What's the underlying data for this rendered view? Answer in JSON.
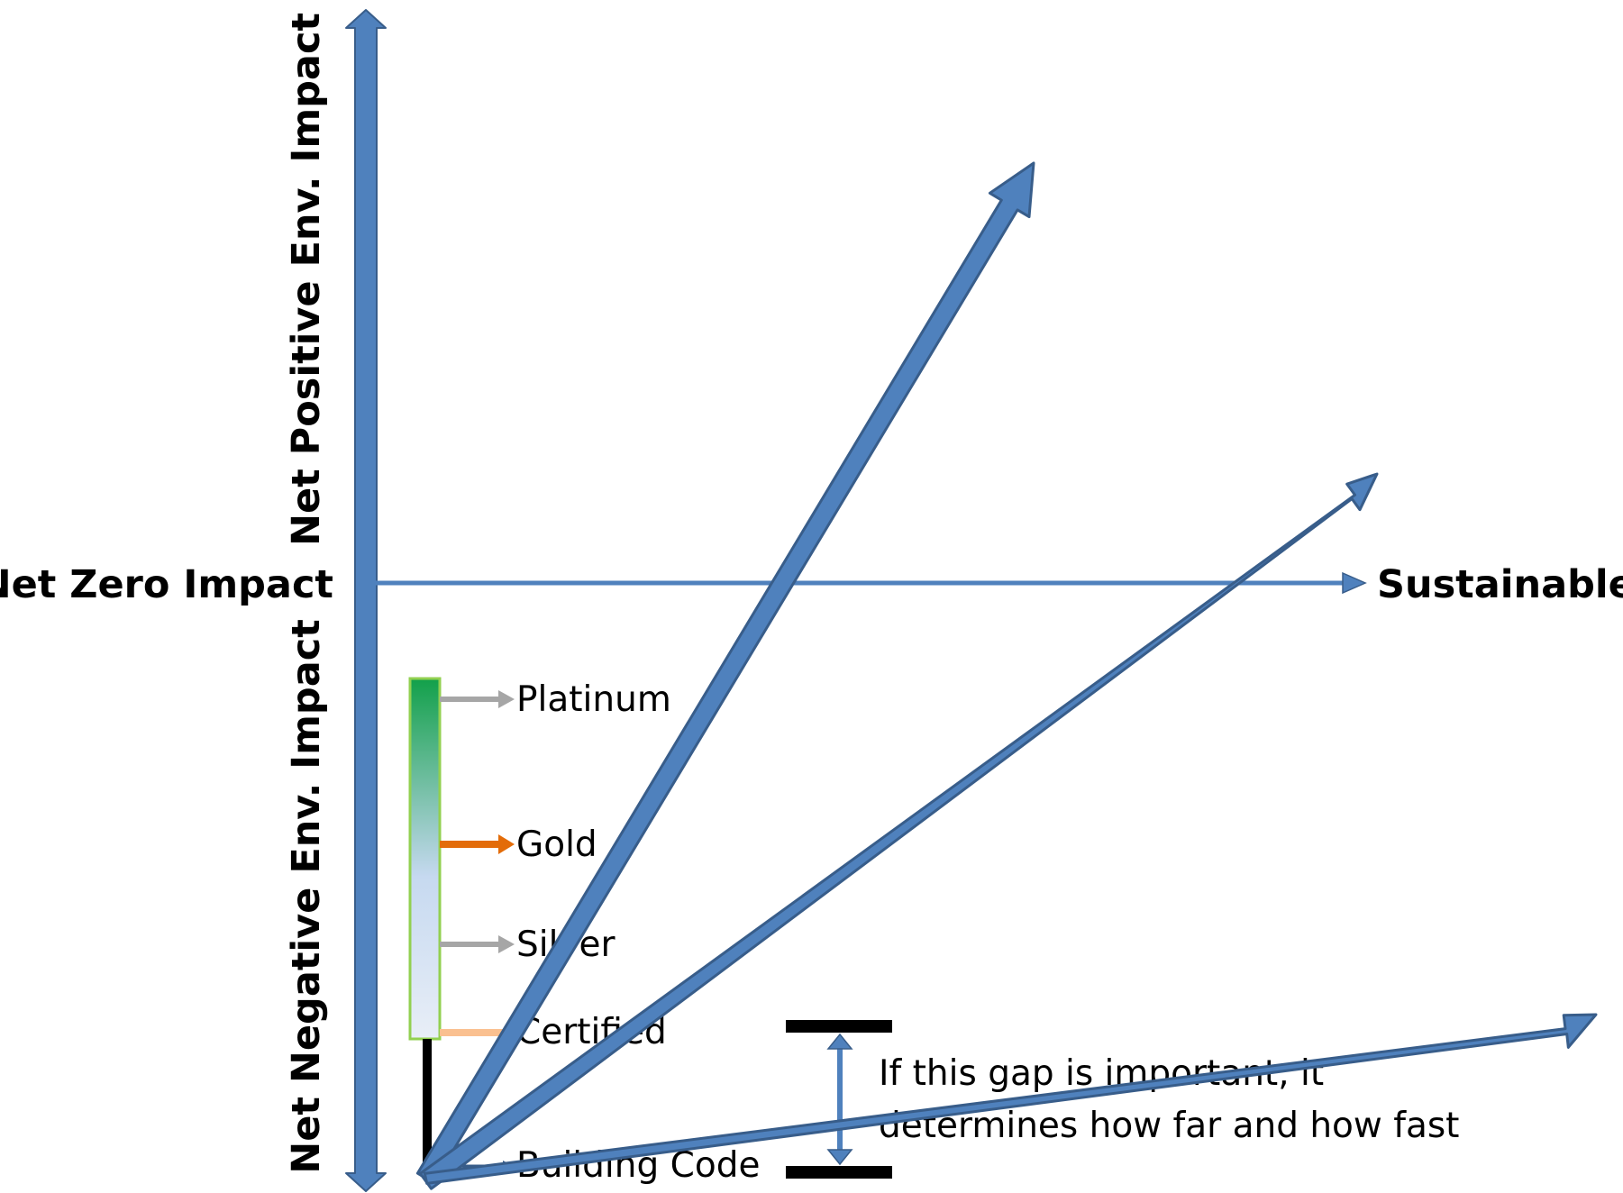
{
  "colors": {
    "arrow_fill": "#4f81bd",
    "arrow_stroke": "#385d8a",
    "level_bar_top": "#12a04a",
    "level_bar_bottom": "#dce6f2",
    "level_bar_border": "#92d050",
    "platinum": "#a6a6a6",
    "gold": "#e36c09",
    "silver": "#a6a6a6",
    "certified": "#fac090",
    "building_code": "#000000"
  },
  "axes": {
    "vertical_top_label": "Net Positive Env. Impact",
    "vertical_bottom_label": "Net Negative Env. Impact",
    "horizontal_left_label": "Net Zero Impact",
    "horizontal_right_label": "Sustainable"
  },
  "levels": [
    {
      "key": "platinum",
      "label": "Platinum"
    },
    {
      "key": "gold",
      "label": "Gold"
    },
    {
      "key": "silver",
      "label": "Silver"
    },
    {
      "key": "certified",
      "label": "Certified"
    },
    {
      "key": "building_code",
      "label": "Building Code"
    }
  ],
  "gap_annotation": {
    "line1": "If this gap is important, it",
    "line2": "determines how far and how fast"
  }
}
